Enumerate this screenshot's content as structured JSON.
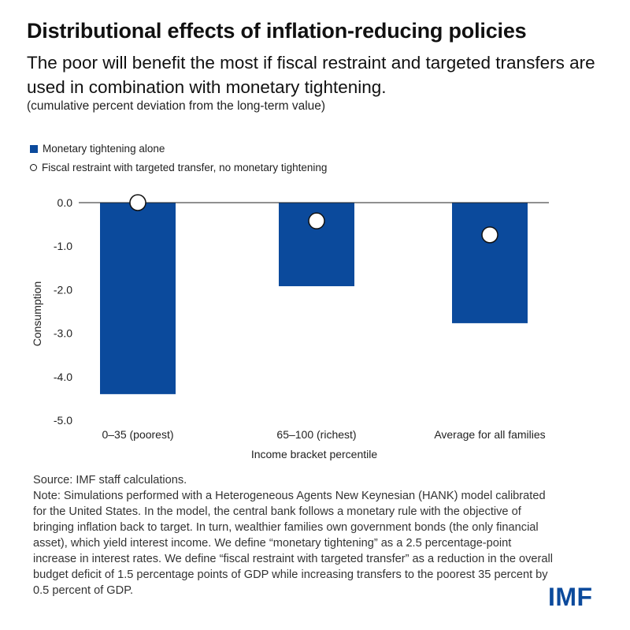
{
  "title": "Distributional effects of inflation-reducing policies",
  "subtitle": "The poor will benefit the most if fiscal restraint and targeted transfers are used in combination with monetary tightening.",
  "unit_note": "(cumulative percent deviation from the long-term value)",
  "source": "Source: IMF staff calculations.",
  "note": "Note: Simulations performed with a Heterogeneous Agents New Keynesian (HANK) model calibrated for the United States. In the model, the central bank follows a monetary rule with the objective of bringing inflation back to target. In turn, wealthier families own government bonds (the only financial asset), which yield interest income. We define “monetary tightening” as a 2.5 percentage-point increase in interest rates. We define “fiscal restraint with targeted transfer” as a reduction in the overall budget deficit of 1.5 percentage points of GDP while increasing transfers to the poorest 35 percent by 0.5 percent of GDP.",
  "logo_text": "IMF",
  "colors": {
    "bar": "#0b4a9c",
    "marker_fill": "#ffffff",
    "marker_stroke": "#111111"
  },
  "chart_data": {
    "type": "bar",
    "categories": [
      "0–35 (poorest)",
      "65–100 (richest)",
      "Average for all families"
    ],
    "series": [
      {
        "name": "Monetary tightening alone",
        "kind": "bar",
        "values": [
          -4.4,
          -1.92,
          -2.77
        ]
      },
      {
        "name": "Fiscal restraint with targeted transfer, no monetary tightening",
        "kind": "marker",
        "values": [
          0.0,
          -0.42,
          -0.74
        ]
      }
    ],
    "xlabel": "Income bracket percentile",
    "ylabel": "Consumption",
    "ylim": [
      -5.0,
      0.0
    ],
    "yticks": [
      "0.0",
      "-1.0",
      "-2.0",
      "-3.0",
      "-4.0",
      "-5.0"
    ],
    "ytick_values": [
      0,
      -1,
      -2,
      -3,
      -4,
      -5
    ],
    "grid": false,
    "legend_position": "top-left"
  }
}
